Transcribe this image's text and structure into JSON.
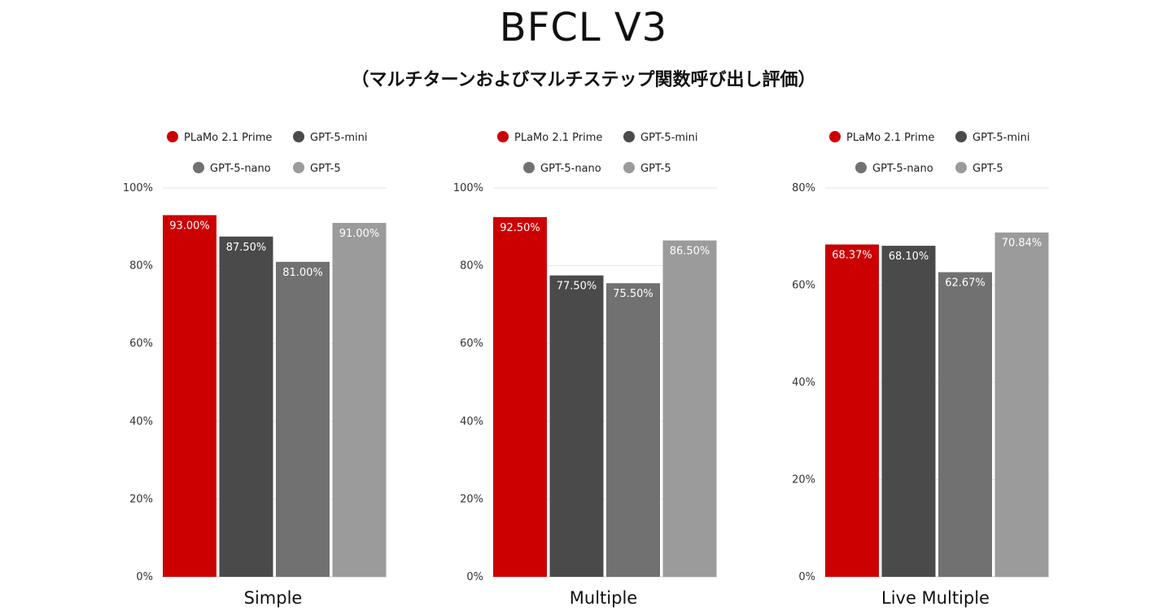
{
  "title": "BFCL V3",
  "subtitle": "（マルチターンおよびマルチステップ関数呼び出し評価）",
  "colors": {
    "PLaMo 2.1 Prime": "#cc0000",
    "GPT-5-mini": "#4a4a4a",
    "GPT-5-nano": "#717171",
    "GPT-5": "#9b9b9b"
  },
  "chart_data": [
    {
      "type": "bar",
      "categories": [
        "Simple"
      ],
      "series": [
        {
          "name": "PLaMo 2.1 Prime",
          "values": [
            93.0
          ],
          "label": "93.00%"
        },
        {
          "name": "GPT-5-mini",
          "values": [
            87.5
          ],
          "label": "87.50%"
        },
        {
          "name": "GPT-5-nano",
          "values": [
            81.0
          ],
          "label": "81.00%"
        },
        {
          "name": "GPT-5",
          "values": [
            91.0
          ],
          "label": "91.00%"
        }
      ],
      "ylim": [
        0,
        100
      ],
      "yticks": [
        0,
        20,
        40,
        60,
        80,
        100
      ],
      "ytick_labels": [
        "0%",
        "20%",
        "40%",
        "60%",
        "80%",
        "100%"
      ],
      "legend": "top",
      "grid": true
    },
    {
      "type": "bar",
      "categories": [
        "Multiple"
      ],
      "series": [
        {
          "name": "PLaMo 2.1 Prime",
          "values": [
            92.5
          ],
          "label": "92.50%"
        },
        {
          "name": "GPT-5-mini",
          "values": [
            77.5
          ],
          "label": "77.50%"
        },
        {
          "name": "GPT-5-nano",
          "values": [
            75.5
          ],
          "label": "75.50%"
        },
        {
          "name": "GPT-5",
          "values": [
            86.5
          ],
          "label": "86.50%"
        }
      ],
      "ylim": [
        0,
        100
      ],
      "yticks": [
        0,
        20,
        40,
        60,
        80,
        100
      ],
      "ytick_labels": [
        "0%",
        "20%",
        "40%",
        "60%",
        "80%",
        "100%"
      ],
      "legend": "top",
      "grid": true
    },
    {
      "type": "bar",
      "categories": [
        "Live Multiple"
      ],
      "series": [
        {
          "name": "PLaMo 2.1 Prime",
          "values": [
            68.37
          ],
          "label": "68.37%"
        },
        {
          "name": "GPT-5-mini",
          "values": [
            68.1
          ],
          "label": "68.10%"
        },
        {
          "name": "GPT-5-nano",
          "values": [
            62.67
          ],
          "label": "62.67%"
        },
        {
          "name": "GPT-5",
          "values": [
            70.84
          ],
          "label": "70.84%"
        }
      ],
      "ylim": [
        0,
        80
      ],
      "yticks": [
        0,
        20,
        40,
        60,
        80
      ],
      "ytick_labels": [
        "0%",
        "20%",
        "40%",
        "60%",
        "80%"
      ],
      "legend": "top",
      "grid": true
    }
  ]
}
